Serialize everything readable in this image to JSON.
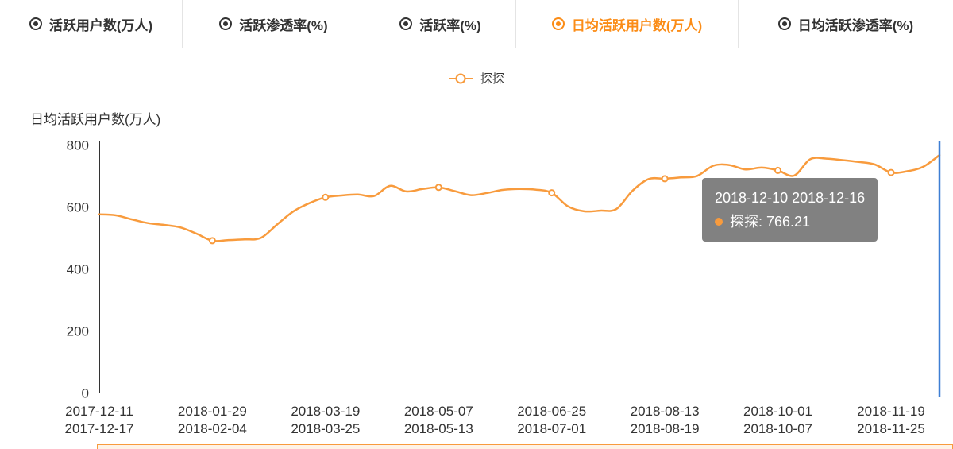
{
  "tabs": [
    {
      "label": "活跃用户数(万人)",
      "selected": false
    },
    {
      "label": "活跃渗透率(%)",
      "selected": false
    },
    {
      "label": "活跃率(%)",
      "selected": false
    },
    {
      "label": "日均活跃用户数(万人)",
      "selected": true
    },
    {
      "label": "日均活跃渗透率(%)",
      "selected": false
    }
  ],
  "legend": {
    "label": "探探"
  },
  "tooltip": {
    "title": "2018-12-10 2018-12-16",
    "label": "探探: 766.21"
  },
  "colors": {
    "accent": "#F89B3D",
    "tab_selected": "#FB8C16",
    "axis": "#333333",
    "axis_pointer": "#3E7FD4",
    "tick_text": "#333333"
  },
  "chart_data": {
    "type": "line",
    "title": "日均活跃用户数(万人)",
    "ylabel": "日均活跃用户数(万人)",
    "ylim": [
      0,
      800
    ],
    "y_ticks": [
      0,
      200,
      400,
      600,
      800
    ],
    "grid": false,
    "legend_position": "top",
    "series": [
      {
        "name": "探探",
        "values": [
          575,
          572,
          559,
          547,
          541,
          533,
          513,
          490,
          492,
          494,
          499,
          542,
          584,
          611,
          630,
          636,
          639,
          634,
          667,
          649,
          657,
          662,
          650,
          637,
          644,
          654,
          657,
          655,
          644.5,
          601,
          585,
          587,
          592,
          651,
          689,
          690,
          694,
          699,
          732,
          734,
          720,
          726,
          717,
          700,
          753,
          755,
          750,
          744,
          736,
          710,
          714,
          729,
          766.21
        ]
      }
    ],
    "x_label_indices": [
      0,
      7,
      14,
      21,
      28,
      35,
      42,
      49
    ],
    "x_tick_labels": [
      [
        "2017-12-11",
        "2017-12-17"
      ],
      [
        "2018-01-29",
        "2018-02-04"
      ],
      [
        "2018-03-19",
        "2018-03-25"
      ],
      [
        "2018-05-07",
        "2018-05-13"
      ],
      [
        "2018-06-25",
        "2018-07-01"
      ],
      [
        "2018-08-13",
        "2018-08-19"
      ],
      [
        "2018-10-01",
        "2018-10-07"
      ],
      [
        "2018-11-19",
        "2018-11-25"
      ]
    ],
    "marker_indices": [
      7,
      14,
      21,
      28,
      35,
      42,
      49
    ],
    "highlight_index": 52,
    "highlight_value": 766.21
  }
}
